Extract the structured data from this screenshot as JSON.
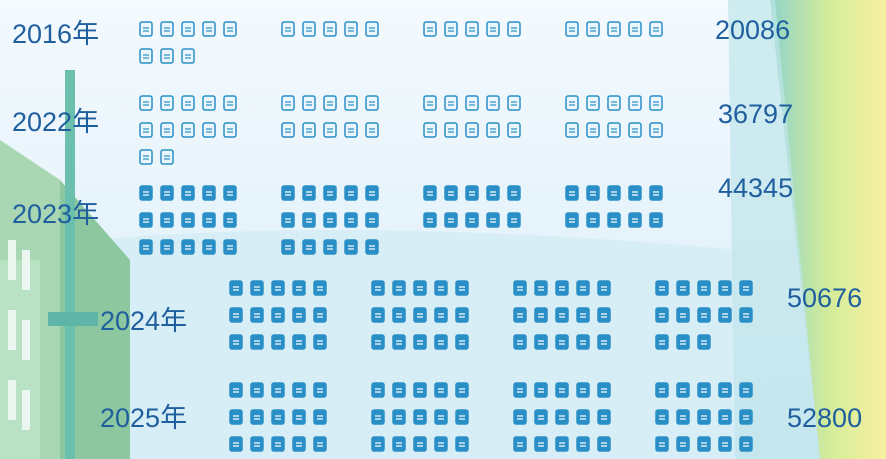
{
  "chart_data": {
    "type": "pictogram",
    "categories": [
      "2016年",
      "2022年",
      "2023年",
      "2024年",
      "2025年"
    ],
    "values": [
      20086,
      36797,
      44345,
      50676,
      52800
    ],
    "color": "#2a8fc7"
  }
}
